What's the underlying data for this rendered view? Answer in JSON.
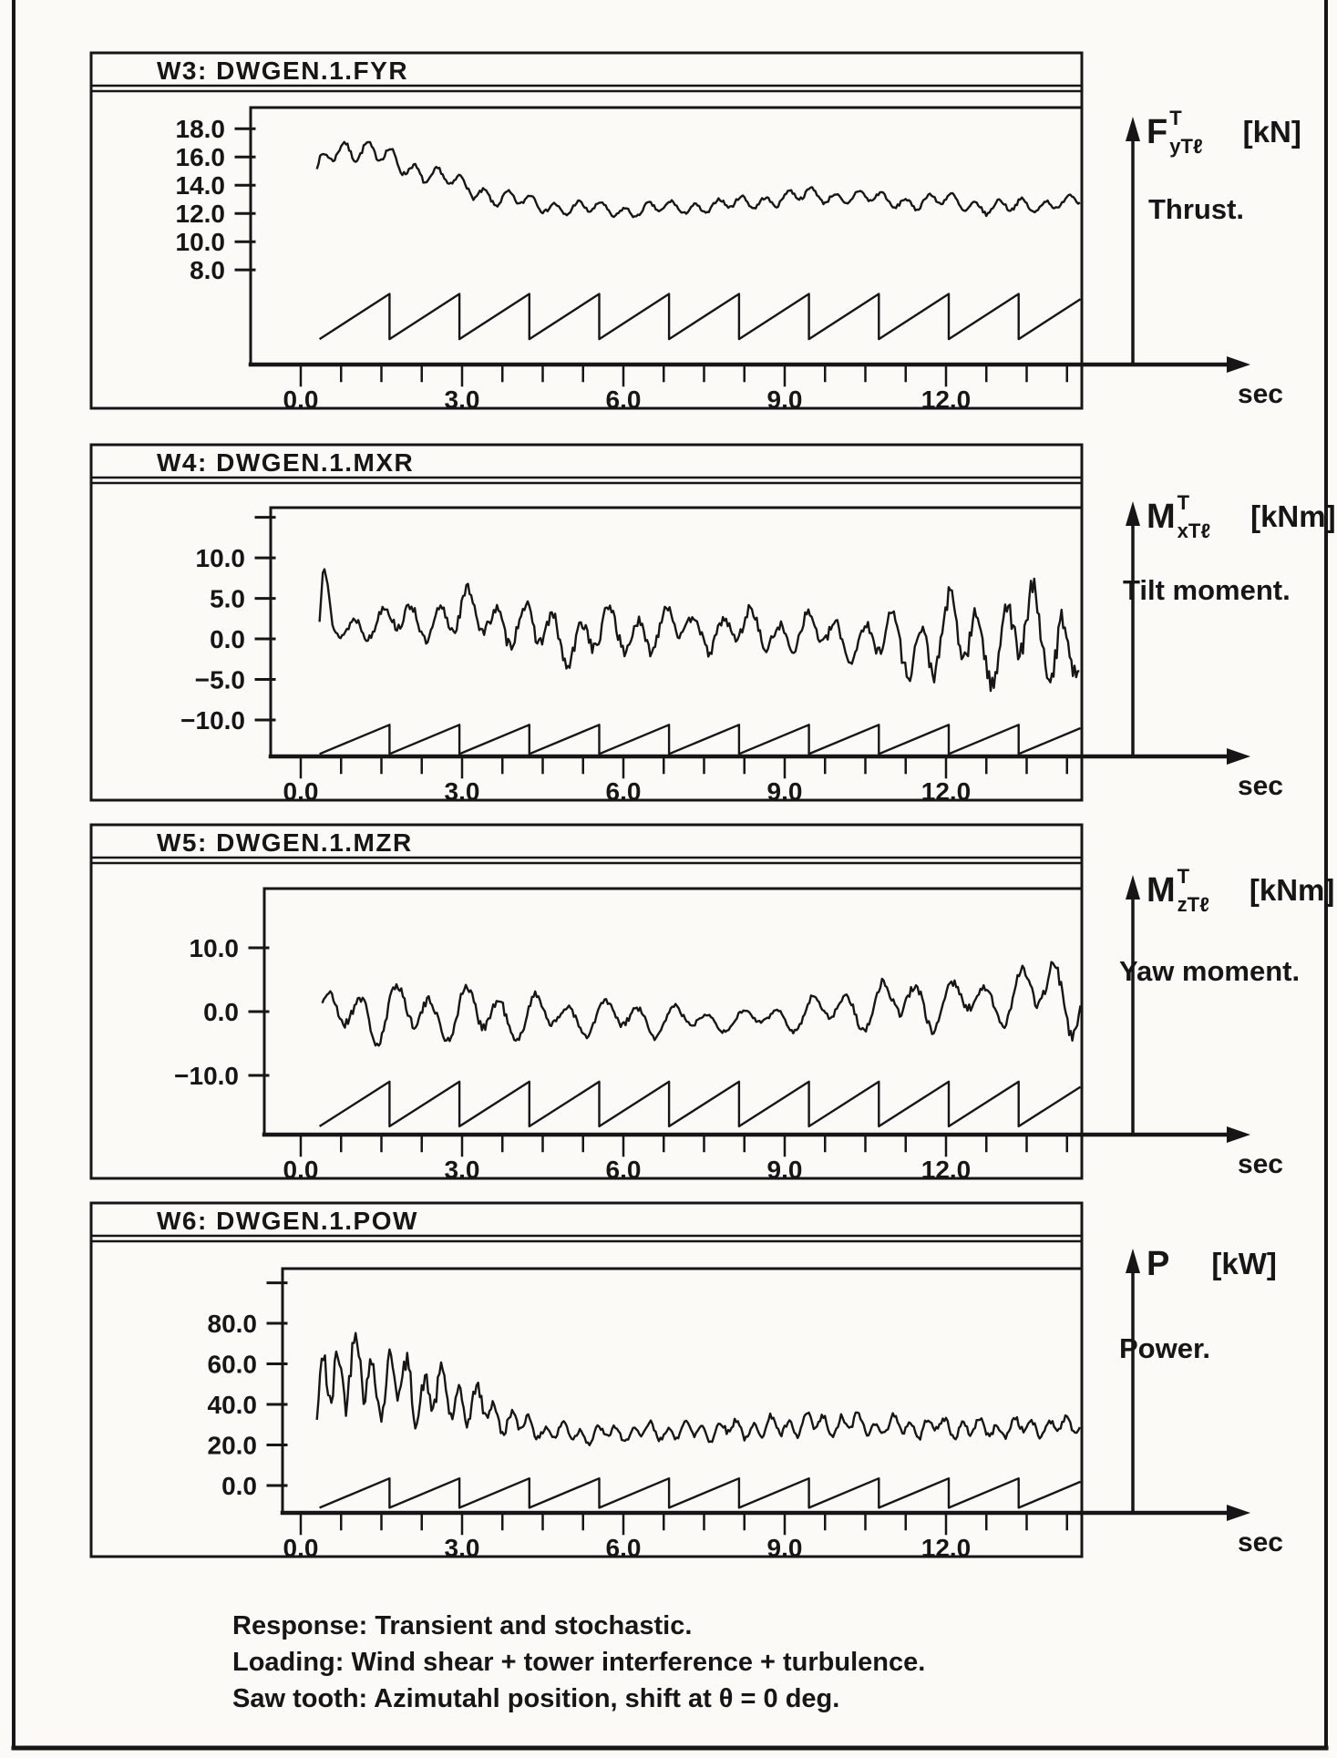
{
  "page": {
    "caption_lines": [
      "Response: Transient and stochastic.",
      "Loading: Wind shear + tower interference + turbulence.",
      "Saw tooth: Azimutahl position, shift at θ = 0 deg."
    ]
  },
  "windows": [
    {
      "id": "W3",
      "title": "W3:  DWGEN.1.FYR",
      "symbol": {
        "main": "F",
        "sup": "T",
        "sub": "yTℓ",
        "unit": "[kN]"
      },
      "desc": "Thrust."
    },
    {
      "id": "W4",
      "title": "W4:  DWGEN.1.MXR",
      "symbol": {
        "main": "M",
        "sup": "T",
        "sub": "xTℓ",
        "unit": "[kNm]"
      },
      "desc": "Tilt moment."
    },
    {
      "id": "W5",
      "title": "W5:  DWGEN.1.MZR",
      "symbol": {
        "main": "M",
        "sup": "T",
        "sub": "zTℓ",
        "unit": "[kNm]"
      },
      "desc": "Yaw moment."
    },
    {
      "id": "W6",
      "title": "W6:  DWGEN.1.POW",
      "symbol": {
        "main": "P",
        "sup": "",
        "sub": "",
        "unit": "[kW]"
      },
      "desc": "Power."
    }
  ],
  "chart_data": [
    {
      "type": "line",
      "title": "W3: DWGEN.1.FYR",
      "quantity": "Thrust FyTl [kN]",
      "xlabel": "sec",
      "x_range": [
        0,
        14.5
      ],
      "x_major_ticks": [
        {
          "v": 0,
          "label": "0.0"
        },
        {
          "v": 3,
          "label": "3.0"
        },
        {
          "v": 6,
          "label": "6.0"
        },
        {
          "v": 9,
          "label": "9.0"
        },
        {
          "v": 12,
          "label": "12.0"
        }
      ],
      "x_minor_step": 0.75,
      "y_range": [
        1.3,
        19.5
      ],
      "y_ticks": [
        {
          "v": 18,
          "label": "18.0"
        },
        {
          "v": 16,
          "label": "16.0"
        },
        {
          "v": 14,
          "label": "14.0"
        },
        {
          "v": 12,
          "label": "12.0"
        },
        {
          "v": 10,
          "label": "10.0"
        },
        {
          "v": 8,
          "label": "8.0"
        }
      ],
      "y_extra_ticks": [],
      "series": [
        {
          "name": "thrust-response",
          "kind": "envelope",
          "t_start": 0.3,
          "freq": 2.3,
          "freq2": 0.77,
          "phase": 0.5,
          "phase2": 2.0,
          "noise": 0.45,
          "seed": 7,
          "mean_pts": [
            [
              0.3,
              14.8
            ],
            [
              0.5,
              16.2
            ],
            [
              0.8,
              16.8
            ],
            [
              1.2,
              16.4
            ],
            [
              1.6,
              15.9
            ],
            [
              2.0,
              15.3
            ],
            [
              2.4,
              14.8
            ],
            [
              2.8,
              14.2
            ],
            [
              3.2,
              13.7
            ],
            [
              3.6,
              13.2
            ],
            [
              4.0,
              12.9
            ],
            [
              4.5,
              12.6
            ],
            [
              5.0,
              12.4
            ],
            [
              5.5,
              12.3
            ],
            [
              6.0,
              12.2
            ],
            [
              6.5,
              12.3
            ],
            [
              7.0,
              12.4
            ],
            [
              7.5,
              12.5
            ],
            [
              8.0,
              12.6
            ],
            [
              8.5,
              12.9
            ],
            [
              9.0,
              13.1
            ],
            [
              9.5,
              13.3
            ],
            [
              10.0,
              13.2
            ],
            [
              10.5,
              13.1
            ],
            [
              11.0,
              12.9
            ],
            [
              11.5,
              12.8
            ],
            [
              12.0,
              12.9
            ],
            [
              12.5,
              12.6
            ],
            [
              13.0,
              12.4
            ],
            [
              13.5,
              12.5
            ],
            [
              14.0,
              12.8
            ],
            [
              14.5,
              12.9
            ]
          ],
          "amp_pts": [
            [
              0.3,
              0.7
            ],
            [
              1.0,
              0.8
            ],
            [
              2.0,
              0.75
            ],
            [
              3.0,
              0.7
            ],
            [
              4.0,
              0.6
            ],
            [
              5.0,
              0.55
            ],
            [
              7.0,
              0.5
            ],
            [
              9.0,
              0.55
            ],
            [
              11.0,
              0.55
            ],
            [
              13.0,
              0.6
            ],
            [
              14.5,
              0.5
            ]
          ]
        },
        {
          "name": "azimuth-sawtooth",
          "kind": "sawtooth",
          "t_start": 0.35,
          "period": 1.3,
          "min": 3.1,
          "max": 6.3
        }
      ]
    },
    {
      "type": "line",
      "title": "W4: DWGEN.1.MXR",
      "quantity": "Tilt moment MxTl [kNm]",
      "xlabel": "sec",
      "x_range": [
        0,
        14.5
      ],
      "x_major_ticks": [
        {
          "v": 0,
          "label": "0.0"
        },
        {
          "v": 3,
          "label": "3.0"
        },
        {
          "v": 6,
          "label": "6.0"
        },
        {
          "v": 9,
          "label": "9.0"
        },
        {
          "v": 12,
          "label": "12.0"
        }
      ],
      "x_minor_step": 0.75,
      "y_range": [
        -14.5,
        16.2
      ],
      "y_ticks": [
        {
          "v": 10,
          "label": "10.0"
        },
        {
          "v": 5,
          "label": "5.0"
        },
        {
          "v": 0,
          "label": "0.0"
        },
        {
          "v": -5,
          "label": "−5.0"
        },
        {
          "v": -10,
          "label": "−10.0"
        }
      ],
      "y_extra_ticks": [
        15
      ],
      "series": [
        {
          "name": "tilt-moment-response",
          "kind": "envelope",
          "t_start": 0.35,
          "freq": 1.9,
          "freq2": 0.77,
          "phase": 0.0,
          "phase2": 1.0,
          "noise": 0.5,
          "seed": 13,
          "mean_pts": [
            [
              0.35,
              2.0
            ],
            [
              0.42,
              8.8
            ],
            [
              0.5,
              6.0
            ],
            [
              0.6,
              0.5
            ],
            [
              0.8,
              1.5
            ],
            [
              1.2,
              2.0
            ],
            [
              2.0,
              2.2
            ],
            [
              2.8,
              2.6
            ],
            [
              3.4,
              3.0
            ],
            [
              3.8,
              2.4
            ],
            [
              4.2,
              1.2
            ],
            [
              4.6,
              0.4
            ],
            [
              5.2,
              0.2
            ],
            [
              5.8,
              0.6
            ],
            [
              6.4,
              1.2
            ],
            [
              7.0,
              1.3
            ],
            [
              7.6,
              1.1
            ],
            [
              8.4,
              1.0
            ],
            [
              9.2,
              0.8
            ],
            [
              10.0,
              0.4
            ],
            [
              10.6,
              -0.2
            ],
            [
              11.2,
              -0.6
            ],
            [
              12.0,
              -0.2
            ],
            [
              12.8,
              0.2
            ],
            [
              13.6,
              0.3
            ],
            [
              14.5,
              0.4
            ]
          ],
          "amp_pts": [
            [
              0.35,
              0.3
            ],
            [
              0.6,
              1.2
            ],
            [
              1.0,
              1.8
            ],
            [
              1.6,
              2.2
            ],
            [
              2.4,
              2.6
            ],
            [
              3.0,
              3.0
            ],
            [
              3.5,
              3.2
            ],
            [
              4.0,
              2.9
            ],
            [
              4.6,
              3.4
            ],
            [
              5.4,
              3.4
            ],
            [
              6.2,
              3.1
            ],
            [
              7.0,
              2.7
            ],
            [
              7.8,
              2.4
            ],
            [
              8.6,
              2.7
            ],
            [
              9.4,
              2.4
            ],
            [
              10.2,
              2.6
            ],
            [
              10.8,
              3.2
            ],
            [
              11.4,
              4.6
            ],
            [
              12.2,
              5.2
            ],
            [
              13.0,
              5.6
            ],
            [
              13.8,
              6.4
            ],
            [
              14.5,
              6.6
            ]
          ]
        },
        {
          "name": "azimuth-sawtooth",
          "kind": "sawtooth",
          "t_start": 0.35,
          "period": 1.3,
          "min": -14.2,
          "max": -10.6
        }
      ]
    },
    {
      "type": "line",
      "title": "W5: DWGEN.1.MZR",
      "quantity": "Yaw moment MzTl [kNm]",
      "xlabel": "sec",
      "x_range": [
        0,
        14.5
      ],
      "x_major_ticks": [
        {
          "v": 0,
          "label": "0.0"
        },
        {
          "v": 3,
          "label": "3.0"
        },
        {
          "v": 6,
          "label": "6.0"
        },
        {
          "v": 9,
          "label": "9.0"
        },
        {
          "v": 12,
          "label": "12.0"
        }
      ],
      "x_minor_step": 0.75,
      "y_range": [
        -19.3,
        19.3
      ],
      "y_ticks": [
        {
          "v": 10,
          "label": "10.0"
        },
        {
          "v": 0,
          "label": "0.0"
        },
        {
          "v": -10,
          "label": "−10.0"
        }
      ],
      "y_extra_ticks": [],
      "series": [
        {
          "name": "yaw-moment-response",
          "kind": "envelope",
          "t_start": 0.4,
          "freq": 1.55,
          "freq2": 0.77,
          "phase": 0.8,
          "phase2": 0.3,
          "noise": 0.35,
          "seed": 21,
          "mean_pts": [
            [
              0.4,
              -0.5
            ],
            [
              1.0,
              0.0
            ],
            [
              2.0,
              -0.2
            ],
            [
              3.0,
              -0.4
            ],
            [
              4.0,
              -0.6
            ],
            [
              5.0,
              -0.8
            ],
            [
              6.0,
              -1.0
            ],
            [
              7.0,
              -1.3
            ],
            [
              8.0,
              -1.4
            ],
            [
              8.8,
              -1.0
            ],
            [
              9.6,
              0.0
            ],
            [
              10.4,
              0.8
            ],
            [
              11.2,
              1.4
            ],
            [
              12.0,
              1.5
            ],
            [
              12.8,
              1.8
            ],
            [
              13.6,
              2.8
            ],
            [
              14.2,
              3.5
            ],
            [
              14.5,
              2.0
            ]
          ],
          "amp_pts": [
            [
              0.4,
              3.0
            ],
            [
              0.8,
              4.2
            ],
            [
              1.4,
              5.0
            ],
            [
              2.0,
              4.4
            ],
            [
              2.6,
              3.8
            ],
            [
              3.2,
              4.6
            ],
            [
              3.8,
              4.2
            ],
            [
              4.4,
              3.4
            ],
            [
              5.0,
              3.0
            ],
            [
              5.6,
              2.8
            ],
            [
              6.2,
              3.0
            ],
            [
              6.8,
              2.6
            ],
            [
              7.4,
              2.0
            ],
            [
              8.0,
              1.6
            ],
            [
              8.6,
              1.6
            ],
            [
              9.2,
              2.4
            ],
            [
              9.8,
              3.0
            ],
            [
              10.4,
              3.4
            ],
            [
              11.0,
              4.2
            ],
            [
              11.6,
              4.4
            ],
            [
              12.2,
              3.4
            ],
            [
              12.8,
              3.0
            ],
            [
              13.4,
              5.2
            ],
            [
              14.0,
              6.8
            ],
            [
              14.5,
              5.5
            ]
          ]
        },
        {
          "name": "azimuth-sawtooth",
          "kind": "sawtooth",
          "t_start": 0.35,
          "period": 1.3,
          "min": -18.0,
          "max": -11.0
        }
      ]
    },
    {
      "type": "line",
      "title": "W6: DWGEN.1.POW",
      "quantity": "Power P [kW]",
      "xlabel": "sec",
      "x_range": [
        0,
        14.5
      ],
      "x_major_ticks": [
        {
          "v": 0,
          "label": "0.0"
        },
        {
          "v": 3,
          "label": "3.0"
        },
        {
          "v": 6,
          "label": "6.0"
        },
        {
          "v": 9,
          "label": "9.0"
        },
        {
          "v": 12,
          "label": "12.0"
        }
      ],
      "x_minor_step": 0.75,
      "y_range": [
        -13.5,
        107
      ],
      "y_ticks": [
        {
          "v": 80,
          "label": "80.0"
        },
        {
          "v": 60,
          "label": "60.0"
        },
        {
          "v": 40,
          "label": "40.0"
        },
        {
          "v": 20,
          "label": "20.0"
        },
        {
          "v": 0,
          "label": "0.0"
        }
      ],
      "y_extra_ticks": [
        100
      ],
      "series": [
        {
          "name": "power-response",
          "kind": "envelope",
          "t_start": 0.3,
          "freq": 3.1,
          "freq2": 1.3,
          "phase": 0.2,
          "phase2": 1.7,
          "noise": 0.6,
          "seed": 42,
          "mean_pts": [
            [
              0.3,
              30
            ],
            [
              0.45,
              62
            ],
            [
              0.7,
              58
            ],
            [
              1.0,
              56
            ],
            [
              1.4,
              53
            ],
            [
              1.8,
              50
            ],
            [
              2.2,
              47
            ],
            [
              2.6,
              44
            ],
            [
              3.0,
              42
            ],
            [
              3.4,
              38
            ],
            [
              3.8,
              33
            ],
            [
              4.2,
              29
            ],
            [
              4.6,
              27
            ],
            [
              5.0,
              26
            ],
            [
              5.5,
              25
            ],
            [
              6.0,
              26
            ],
            [
              6.5,
              26
            ],
            [
              7.0,
              27
            ],
            [
              7.5,
              27
            ],
            [
              8.0,
              28
            ],
            [
              8.5,
              28
            ],
            [
              9.0,
              29
            ],
            [
              9.5,
              30
            ],
            [
              10.0,
              30
            ],
            [
              10.5,
              30
            ],
            [
              11.0,
              29
            ],
            [
              11.5,
              29
            ],
            [
              12.0,
              29
            ],
            [
              12.5,
              28
            ],
            [
              13.0,
              28
            ],
            [
              13.5,
              29
            ],
            [
              14.0,
              29
            ],
            [
              14.5,
              30
            ]
          ],
          "amp_pts": [
            [
              0.3,
              4
            ],
            [
              0.5,
              24
            ],
            [
              0.9,
              21
            ],
            [
              1.3,
              18
            ],
            [
              1.7,
              16
            ],
            [
              2.1,
              15
            ],
            [
              2.5,
              13
            ],
            [
              2.9,
              12
            ],
            [
              3.3,
              10
            ],
            [
              3.7,
              8
            ],
            [
              4.1,
              6
            ],
            [
              4.5,
              5
            ],
            [
              5.0,
              4.5
            ],
            [
              6.0,
              4.5
            ],
            [
              7.0,
              5
            ],
            [
              8.0,
              5
            ],
            [
              9.0,
              5.5
            ],
            [
              10.0,
              6
            ],
            [
              11.0,
              5.5
            ],
            [
              12.0,
              5
            ],
            [
              13.0,
              5
            ],
            [
              14.0,
              4.5
            ],
            [
              14.5,
              4
            ]
          ]
        },
        {
          "name": "azimuth-sawtooth",
          "kind": "sawtooth",
          "t_start": 0.35,
          "period": 1.3,
          "min": -11.0,
          "max": 3.5
        }
      ]
    }
  ]
}
